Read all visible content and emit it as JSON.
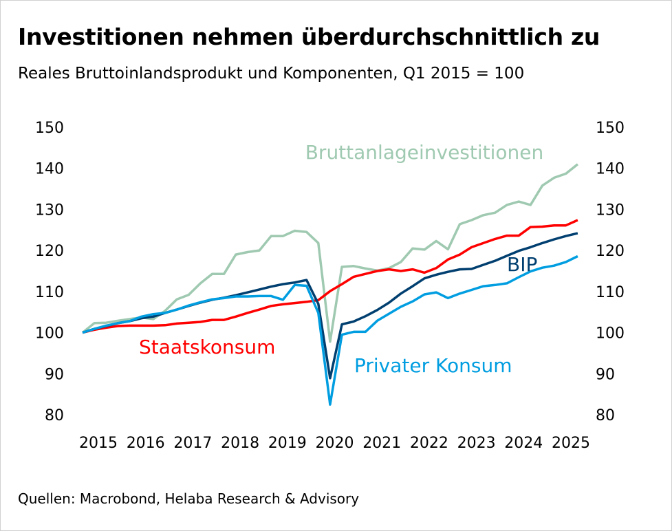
{
  "title": "Investitionen nehmen überdurchschnittlich zu",
  "subtitle": "Reales Bruttoinlandsprodukt und Komponenten, Q1 2015 = 100",
  "source": "Quellen: Macrobond, Helaba Research & Advisory",
  "chart_data": {
    "type": "line",
    "title": "Investitionen nehmen überdurchschnittlich zu",
    "x_start": "Q1 2015",
    "frequency": "quarterly",
    "x_ticks": [
      "2015",
      "2016",
      "2017",
      "2018",
      "2019",
      "2020",
      "2021",
      "2022",
      "2023",
      "2024",
      "2025"
    ],
    "y_ticks": [
      80,
      90,
      100,
      110,
      120,
      130,
      140,
      150
    ],
    "ylim": [
      80,
      150
    ],
    "grid": false,
    "series": [
      {
        "name": "Bruttanlageinvestitionen",
        "color": "#9fc9b0",
        "values": [
          100.0,
          102.3,
          102.4,
          102.9,
          103.3,
          103.7,
          103.3,
          105.3,
          108.1,
          109.2,
          112.0,
          114.3,
          114.3,
          119.0,
          119.6,
          120.0,
          123.5,
          123.5,
          124.8,
          124.5,
          121.8,
          97.8,
          116.0,
          116.2,
          115.6,
          115.1,
          115.7,
          117.2,
          120.5,
          120.2,
          122.3,
          120.3,
          126.4,
          127.4,
          128.6,
          129.2,
          131.1,
          131.9,
          131.1,
          135.8,
          137.7,
          138.7,
          141.0
        ]
      },
      {
        "name": "Staatskonsum",
        "color": "#ff0000",
        "values": [
          100.0,
          100.7,
          101.2,
          101.6,
          101.7,
          101.7,
          101.7,
          101.8,
          102.2,
          102.4,
          102.6,
          103.1,
          103.1,
          103.9,
          104.8,
          105.6,
          106.5,
          106.9,
          107.2,
          107.5,
          107.9,
          110.1,
          111.8,
          113.6,
          114.3,
          115.0,
          115.4,
          115.0,
          115.4,
          114.6,
          115.7,
          117.8,
          119.0,
          120.8,
          121.8,
          122.8,
          123.6,
          123.6,
          125.7,
          125.8,
          126.1,
          126.1,
          127.4
        ]
      },
      {
        "name": "BIP",
        "color": "#003f6f",
        "values": [
          100.0,
          100.9,
          101.6,
          102.3,
          102.8,
          103.5,
          103.9,
          104.8,
          105.6,
          106.5,
          107.3,
          108.0,
          108.5,
          109.1,
          109.8,
          110.5,
          111.2,
          111.8,
          112.2,
          112.8,
          107.0,
          88.9,
          102.0,
          102.7,
          104.0,
          105.5,
          107.3,
          109.5,
          111.3,
          113.2,
          114.1,
          114.8,
          115.4,
          115.5,
          116.5,
          117.5,
          118.7,
          119.9,
          120.8,
          121.8,
          122.7,
          123.5,
          124.2
        ]
      },
      {
        "name": "Privater Konsum",
        "color": "#009ee0",
        "values": [
          100.0,
          100.9,
          101.7,
          102.3,
          102.8,
          103.9,
          104.5,
          104.8,
          105.6,
          106.6,
          107.4,
          108.1,
          108.4,
          108.8,
          108.8,
          108.9,
          108.9,
          108.0,
          111.6,
          111.4,
          104.8,
          82.5,
          99.5,
          100.2,
          100.2,
          102.9,
          104.6,
          106.3,
          107.6,
          109.3,
          109.8,
          108.4,
          109.5,
          110.4,
          111.3,
          111.6,
          112.0,
          113.5,
          114.9,
          115.8,
          116.3,
          117.2,
          118.6
        ]
      }
    ]
  }
}
